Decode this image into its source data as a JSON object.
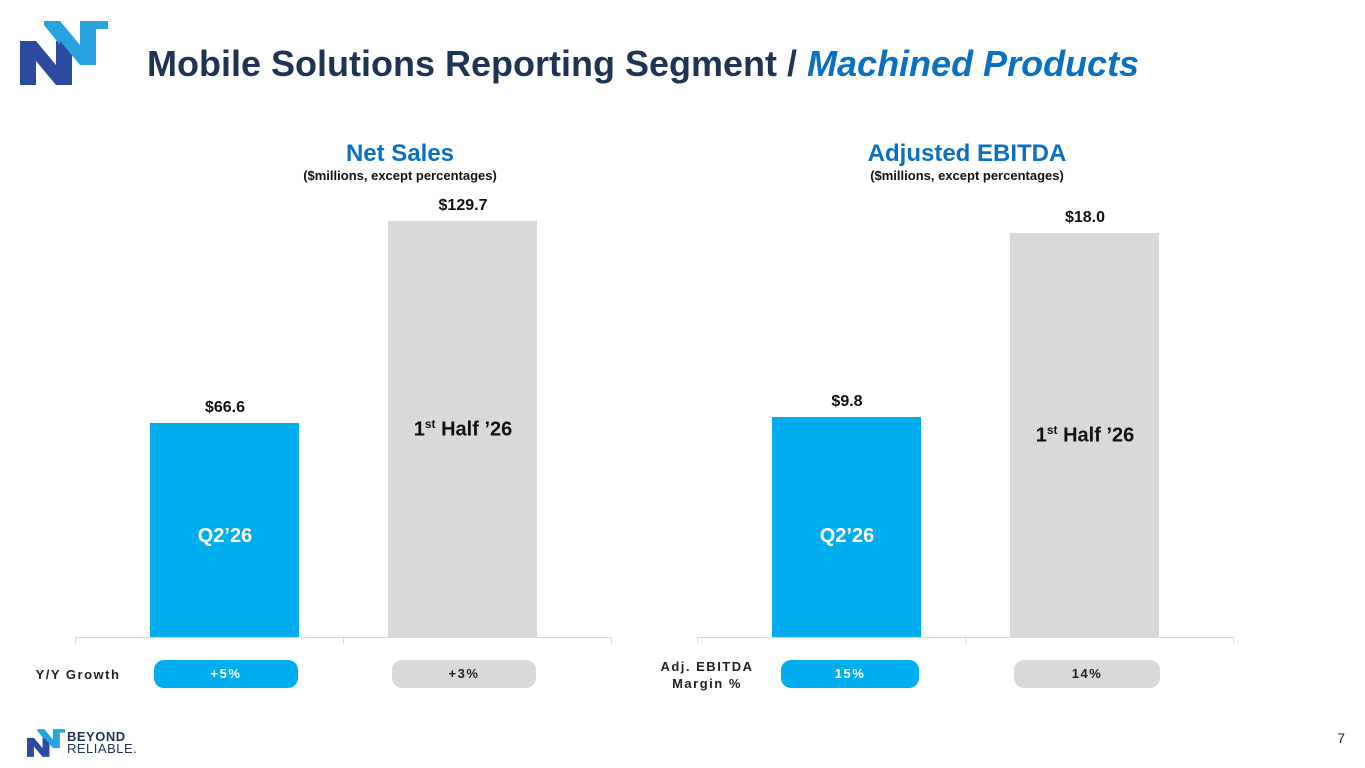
{
  "header": {
    "title_main": "Mobile Solutions Reporting Segment /",
    "title_accent": "Machined Products"
  },
  "colors": {
    "navy": "#1f3355",
    "accent_blue": "#0c70c1",
    "bar_blue": "#00adef",
    "bar_gray": "#d9d9d9"
  },
  "logo": {
    "icon": "nn-logo-icon"
  },
  "chart_data": [
    {
      "type": "bar",
      "title": "Net Sales",
      "subtitle": "($millions, except percentages)",
      "categories": [
        "Q2'26",
        "1st Half '26"
      ],
      "values": [
        66.6,
        129.7
      ],
      "value_labels": [
        "$66.6",
        "$129.7"
      ],
      "bar_labels": [
        {
          "main": "Q2’26",
          "sup": ""
        },
        {
          "main_pre": "1",
          "sup": "st",
          "main_post": " Half ’26"
        }
      ],
      "growth_label": "Y/Y Growth",
      "growth": [
        "+5%",
        "+3%"
      ],
      "ylim": [
        0,
        129.7
      ],
      "grid": false
    },
    {
      "type": "bar",
      "title": "Adjusted EBITDA",
      "subtitle": "($millions, except percentages)",
      "categories": [
        "Q2'26",
        "1st Half '26"
      ],
      "values": [
        9.8,
        18.0
      ],
      "value_labels": [
        "$9.8",
        "$18.0"
      ],
      "bar_labels": [
        {
          "main": "Q2’26",
          "sup": ""
        },
        {
          "main_pre": "1",
          "sup": "st",
          "main_post": " Half ’26"
        }
      ],
      "margin_label_line1": "Adj. EBITDA",
      "margin_label_line2": "Margin %",
      "margin": [
        "15%",
        "14%"
      ],
      "ylim": [
        0,
        18.0
      ],
      "grid": false
    }
  ],
  "footer": {
    "brand_line1": "BEYOND",
    "brand_line2": "RELIABLE.",
    "page_number": "7"
  }
}
